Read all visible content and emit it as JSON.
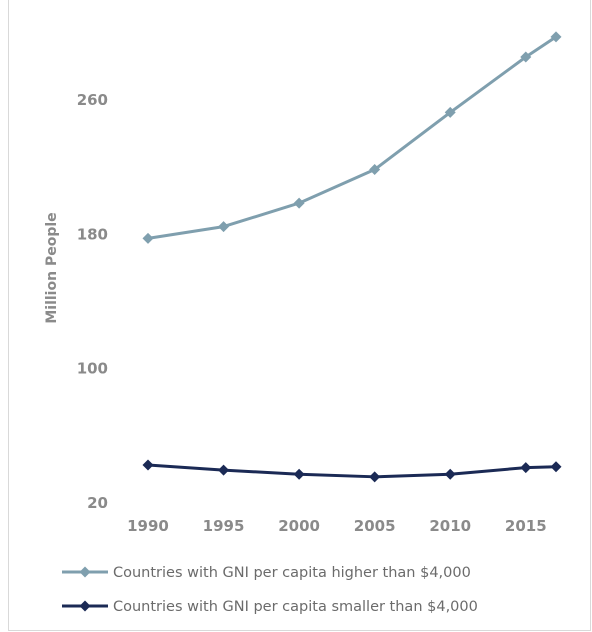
{
  "chart_data": {
    "type": "line",
    "title": "",
    "xlabel": "",
    "ylabel": "Million People",
    "ylim": [
      20,
      300
    ],
    "xlim": [
      1990,
      2017
    ],
    "y_ticks": [
      "20",
      "100",
      "180",
      "260"
    ],
    "x_ticks": [
      "1990",
      "1995",
      "2000",
      "2005",
      "2010",
      "2015"
    ],
    "grid": false,
    "legend_position": "bottom",
    "series": [
      {
        "name": "Countries with GNI per capita higher than $4,000",
        "color": "#7f9fae",
        "x": [
          1990,
          1995,
          2000,
          2005,
          2010,
          2015,
          2017
        ],
        "y": [
          177,
          184,
          198,
          218,
          252,
          285,
          297
        ]
      },
      {
        "name": "Countries with GNI per capita smaller than $4,000",
        "color": "#1b2a55",
        "x": [
          1990,
          1995,
          2000,
          2005,
          2010,
          2015,
          2017
        ],
        "y": [
          42,
          39,
          36.5,
          35,
          36.5,
          40.5,
          41
        ]
      }
    ]
  }
}
